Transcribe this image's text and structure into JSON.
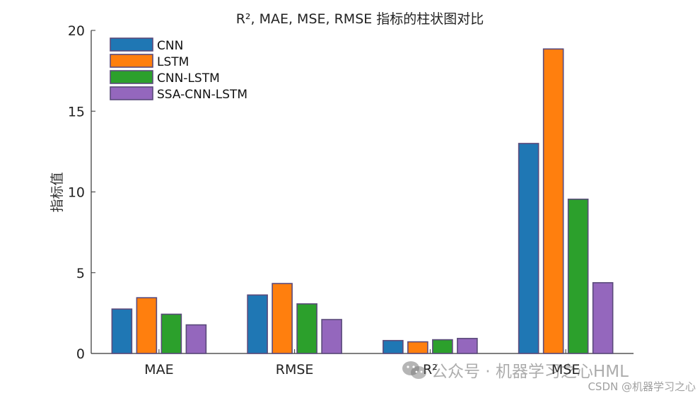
{
  "chart_data": {
    "type": "bar",
    "title": "R², MAE, MSE, RMSE 指标的柱状图对比",
    "xlabel": "",
    "ylabel": "指标值",
    "categories": [
      "MAE",
      "RMSE",
      "R²",
      "MSE"
    ],
    "ylim": [
      0,
      20
    ],
    "yticks": [
      0,
      5,
      10,
      15,
      20
    ],
    "grid": false,
    "legend_position": "top-left",
    "series": [
      {
        "name": "CNN",
        "color": "#1f77b4",
        "values": [
          2.75,
          3.62,
          0.8,
          13.0
        ]
      },
      {
        "name": "LSTM",
        "color": "#ff7f0e",
        "values": [
          3.45,
          4.33,
          0.72,
          18.85
        ]
      },
      {
        "name": "CNN-LSTM",
        "color": "#2ca02c",
        "values": [
          2.43,
          3.07,
          0.85,
          9.55
        ]
      },
      {
        "name": "SSA-CNN-LSTM",
        "color": "#9467bd",
        "values": [
          1.77,
          2.1,
          0.93,
          4.38
        ]
      }
    ]
  },
  "watermarks": {
    "wechat": "公众号 · 机器学习之心HML",
    "csdn": "CSDN @机器学习之心"
  }
}
